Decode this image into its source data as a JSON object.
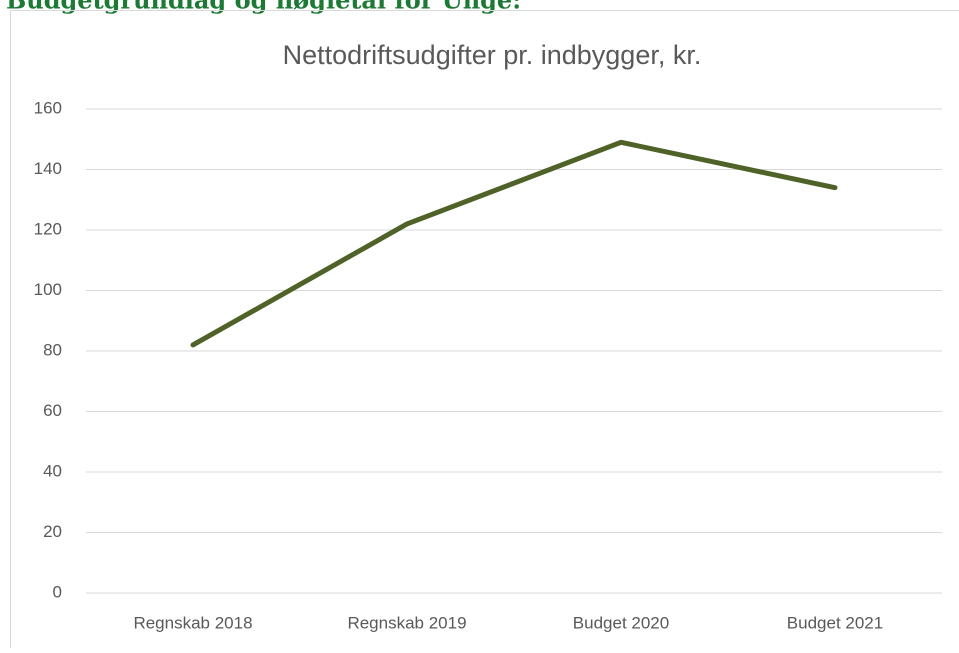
{
  "heading": "Budgetgrundlag og nøgletal for Unge:",
  "chart_data": {
    "type": "line",
    "title": "Nettodriftsudgifter pr. indbygger, kr.",
    "categories": [
      "Regnskab 2018",
      "Regnskab 2019",
      "Budget 2020",
      "Budget 2021"
    ],
    "series": [
      {
        "name": "Nettodriftsudgifter pr. indbygger, kr.",
        "color": "#4f6228",
        "values": [
          82,
          122,
          149,
          134
        ]
      }
    ],
    "ylim": [
      0,
      160
    ],
    "yticks": [
      0,
      20,
      40,
      60,
      80,
      100,
      120,
      140,
      160
    ],
    "grid": true
  }
}
